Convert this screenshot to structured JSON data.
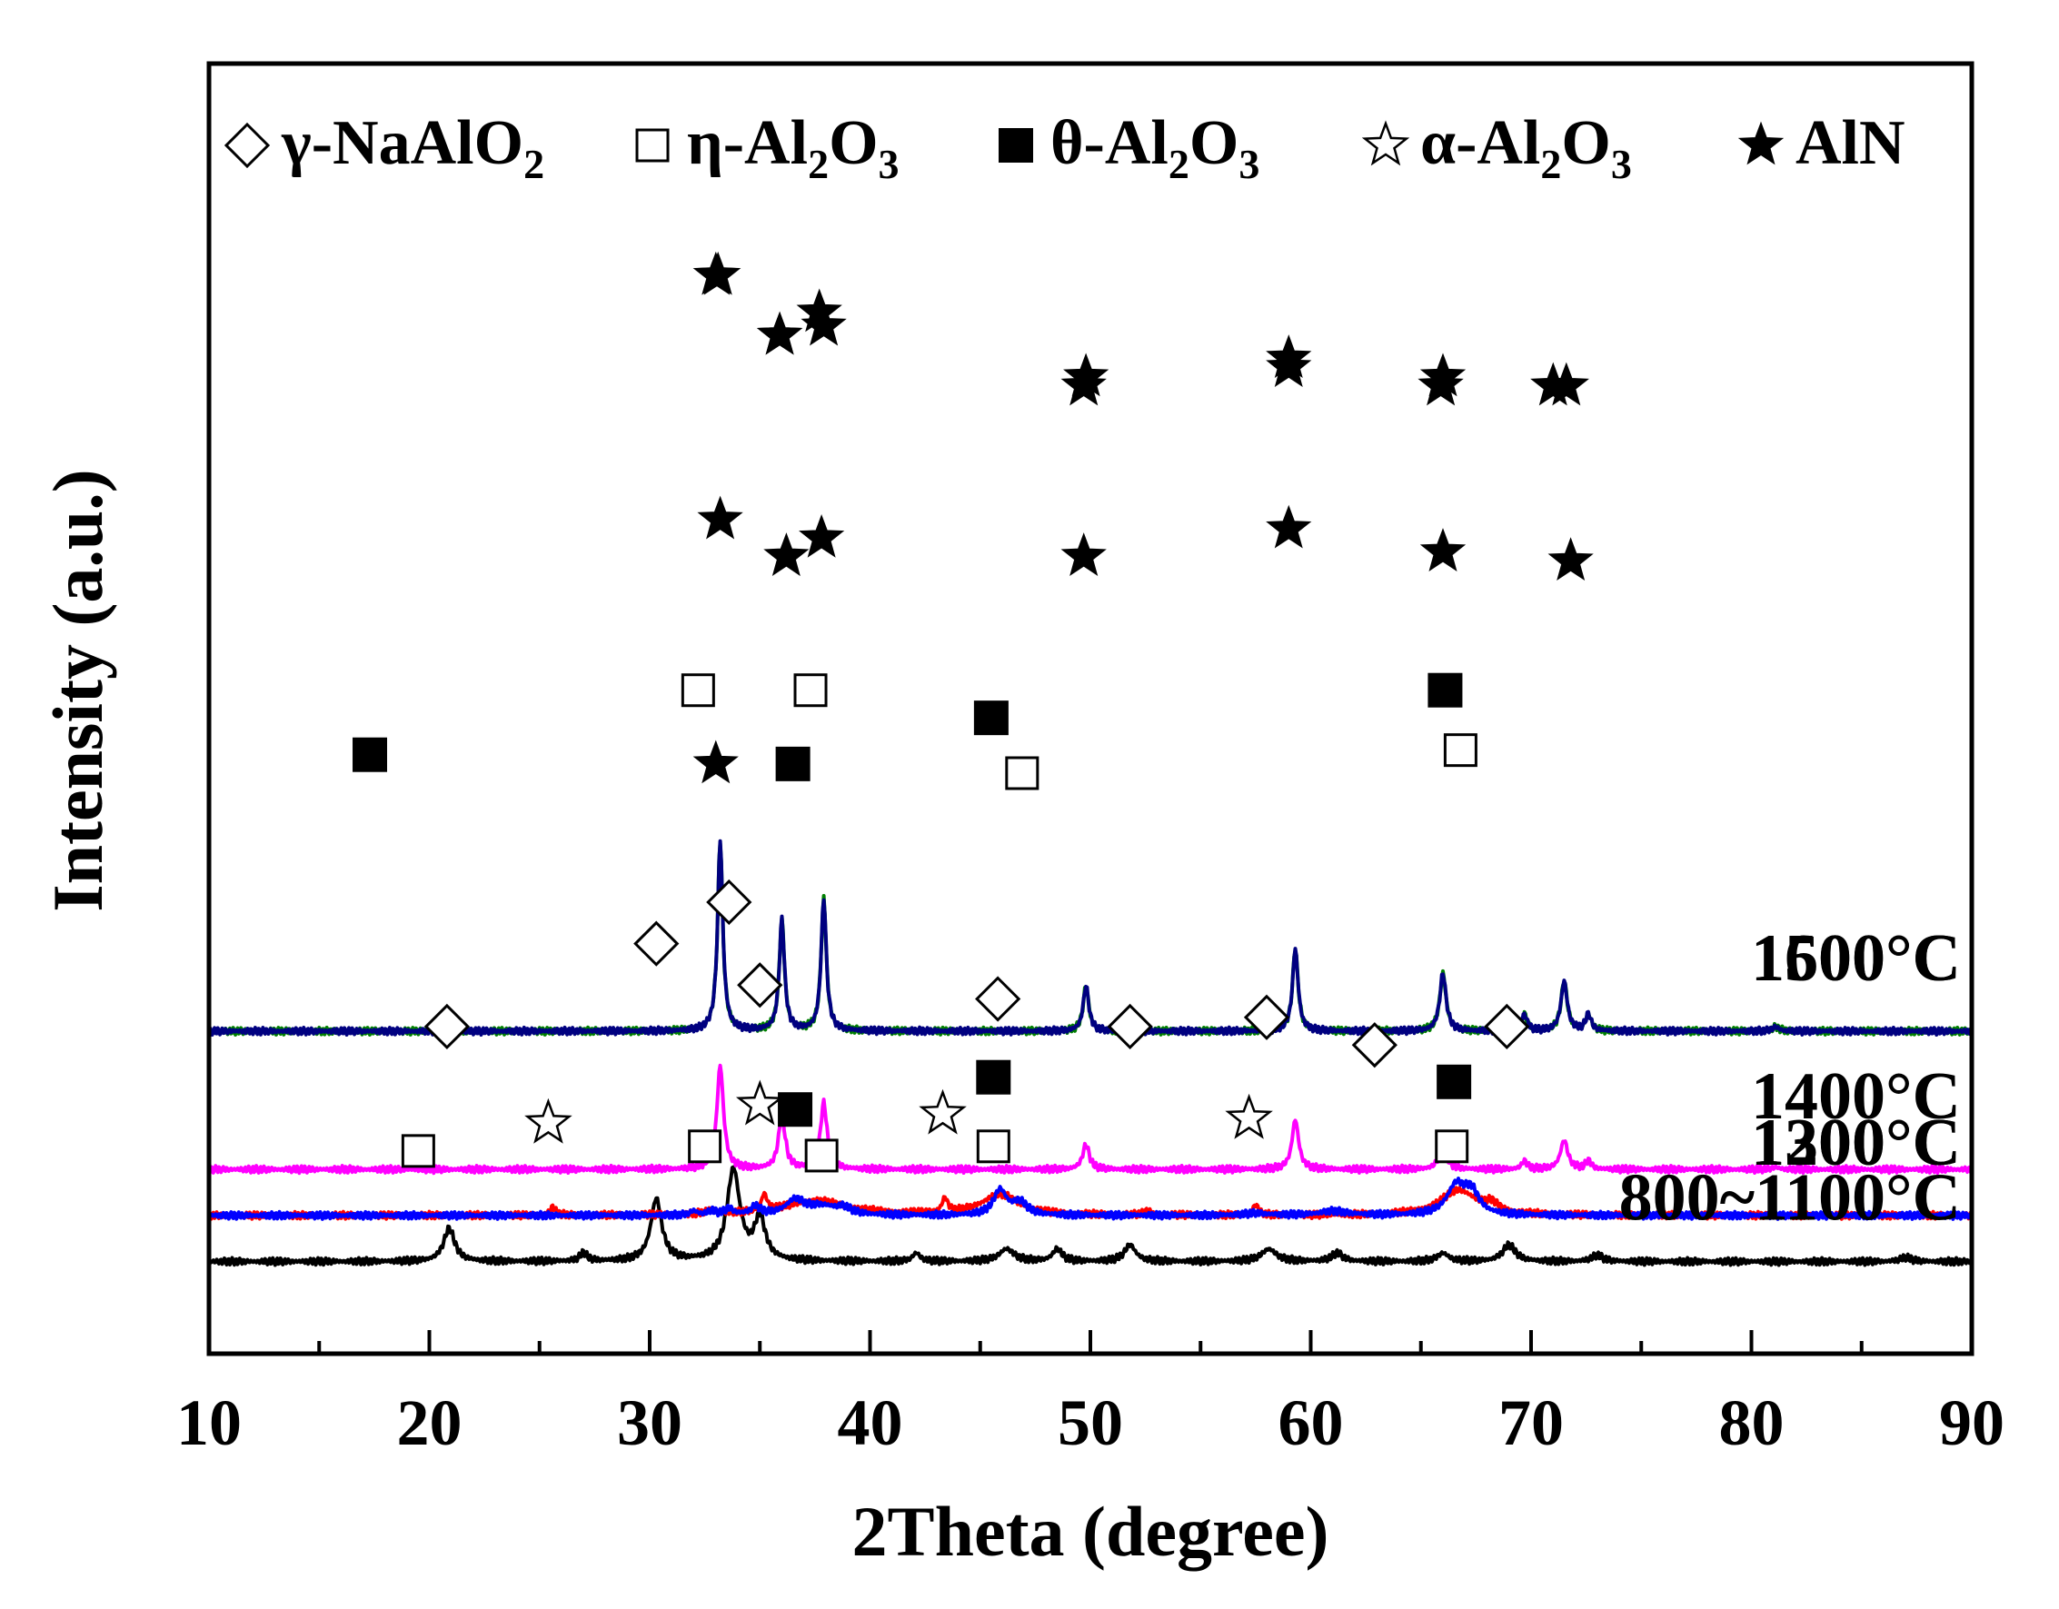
{
  "chart_data": {
    "type": "line",
    "title": "",
    "xlabel": "2Theta (degree)",
    "ylabel": "Intensity (a.u.)",
    "xlim": [
      10,
      90
    ],
    "xticks": [
      10,
      20,
      30,
      40,
      50,
      60,
      70,
      80,
      90
    ],
    "xtick_labels": [
      "10",
      "20",
      "30",
      "40",
      "50",
      "60",
      "70",
      "80",
      "90"
    ],
    "y_ticks_shown": false,
    "legend_position": "top",
    "legend": [
      {
        "symbol": "diamond-open",
        "prefix": "γ-NaAlO",
        "sub1": "2",
        "mid": "",
        "sub2": ""
      },
      {
        "symbol": "square-open",
        "prefix": "η-Al",
        "sub1": "2",
        "mid": "O",
        "sub2": "3"
      },
      {
        "symbol": "square-filled",
        "prefix": "θ-Al",
        "sub1": "2",
        "mid": "O",
        "sub2": "3"
      },
      {
        "symbol": "star-open",
        "prefix": "α-Al",
        "sub1": "2",
        "mid": "O",
        "sub2": "3"
      },
      {
        "symbol": "star-filled",
        "prefix": "AlN",
        "sub1": "",
        "mid": "",
        "sub2": ""
      }
    ],
    "series": [
      {
        "name": "800~1100°C",
        "color": "#000000",
        "baseline": 0.1,
        "scale": 0.45,
        "peaks": [
          [
            20.9,
            0.08,
            0.3
          ],
          [
            27.0,
            0.02,
            0.2
          ],
          [
            30.3,
            0.15,
            0.3
          ],
          [
            33.8,
            0.22,
            0.35
          ],
          [
            35.0,
            0.1,
            0.3
          ],
          [
            42.1,
            0.02,
            0.2
          ],
          [
            46.2,
            0.03,
            0.4
          ],
          [
            48.5,
            0.03,
            0.25
          ],
          [
            51.8,
            0.04,
            0.3
          ],
          [
            58.1,
            0.03,
            0.4
          ],
          [
            61.2,
            0.02,
            0.3
          ],
          [
            66.0,
            0.02,
            0.3
          ],
          [
            69.0,
            0.04,
            0.35
          ],
          [
            73.0,
            0.015,
            0.3
          ],
          [
            87.0,
            0.01,
            0.3
          ]
        ],
        "markers": [
          [
            20.8,
            "diamond-open",
            0.355
          ],
          [
            30.3,
            "diamond-open",
            0.445
          ],
          [
            33.6,
            "diamond-open",
            0.49
          ],
          [
            35.0,
            "diamond-open",
            0.4
          ],
          [
            45.8,
            "diamond-open",
            0.385
          ],
          [
            51.8,
            "diamond-open",
            0.355
          ],
          [
            58.0,
            "diamond-open",
            0.365
          ],
          [
            62.9,
            "diamond-open",
            0.335
          ],
          [
            68.9,
            "diamond-open",
            0.355
          ]
        ]
      },
      {
        "name": "1200°C",
        "color": "#ff0000",
        "baseline": 0.15,
        "scale": 0.45,
        "peaks": [
          [
            25.6,
            0.02,
            0.15
          ],
          [
            32.8,
            0.01,
            0.3
          ],
          [
            35.2,
            0.04,
            0.15
          ],
          [
            37.5,
            0.035,
            1.8
          ],
          [
            43.4,
            0.035,
            0.15
          ],
          [
            45.9,
            0.05,
            1.0
          ],
          [
            52.6,
            0.01,
            0.2
          ],
          [
            57.5,
            0.025,
            0.15
          ],
          [
            66.7,
            0.06,
            1.0
          ],
          [
            68.2,
            0.02,
            0.4
          ]
        ],
        "markers": [
          [
            19.5,
            "square-open",
            0.22
          ],
          [
            25.4,
            "star-open",
            0.25
          ],
          [
            32.5,
            "square-open",
            0.225
          ],
          [
            35.0,
            "star-open",
            0.27
          ],
          [
            36.6,
            "square-filled",
            0.265
          ],
          [
            37.8,
            "square-open",
            0.215
          ],
          [
            43.3,
            "star-open",
            0.26
          ],
          [
            45.6,
            "square-filled",
            0.3
          ],
          [
            45.6,
            "square-open",
            0.225
          ],
          [
            57.2,
            "star-open",
            0.255
          ],
          [
            66.5,
            "square-filled",
            0.295
          ],
          [
            66.4,
            "square-open",
            0.225
          ]
        ]
      },
      {
        "name": "1300°C",
        "color": "#0000ff",
        "baseline": 0.15,
        "scale": 0.45,
        "peaks": [
          [
            32.0,
            0.01,
            0.2
          ],
          [
            32.8,
            0.01,
            0.2
          ],
          [
            33.6,
            0.015,
            0.25
          ],
          [
            34.8,
            0.02,
            0.25
          ],
          [
            36.6,
            0.035,
            0.5
          ],
          [
            37.8,
            0.02,
            0.8
          ],
          [
            38.8,
            0.015,
            0.4
          ],
          [
            45.9,
            0.06,
            0.35
          ],
          [
            46.8,
            0.03,
            0.4
          ],
          [
            57.5,
            0.005,
            0.6
          ],
          [
            61.0,
            0.01,
            0.8
          ],
          [
            66.6,
            0.07,
            0.5
          ],
          [
            67.3,
            0.05,
            0.4
          ]
        ],
        "markers": [
          [
            17.3,
            "square-filled",
            0.65
          ],
          [
            32.2,
            "square-open",
            0.72
          ],
          [
            33.0,
            "star-filled",
            0.64
          ],
          [
            36.5,
            "square-filled",
            0.64
          ],
          [
            37.3,
            "square-open",
            0.72
          ],
          [
            45.5,
            "square-filled",
            0.69
          ],
          [
            46.9,
            "square-open",
            0.63
          ],
          [
            66.1,
            "square-filled",
            0.72
          ],
          [
            66.8,
            "square-open",
            0.655
          ]
        ]
      },
      {
        "name": "1400°C",
        "color": "#ff00ff",
        "baseline": 0.2,
        "scale": 0.45,
        "peaks": [
          [
            33.2,
            0.25,
            0.18
          ],
          [
            36.0,
            0.13,
            0.18
          ],
          [
            37.9,
            0.16,
            0.18
          ],
          [
            49.8,
            0.06,
            0.18
          ],
          [
            59.3,
            0.12,
            0.18
          ],
          [
            66.0,
            0.06,
            0.2
          ],
          [
            69.7,
            0.02,
            0.15
          ],
          [
            71.5,
            0.07,
            0.2
          ],
          [
            72.6,
            0.02,
            0.15
          ],
          [
            81.1,
            0.005,
            0.2
          ]
        ],
        "markers": [
          [
            33.2,
            "star-filled",
            0.905
          ],
          [
            36.2,
            "star-filled",
            0.865
          ],
          [
            37.8,
            "star-filled",
            0.885
          ],
          [
            49.7,
            "star-filled",
            0.865
          ],
          [
            59.0,
            "star-filled",
            0.895
          ],
          [
            66.0,
            "star-filled",
            0.87
          ],
          [
            71.8,
            "star-filled",
            0.86
          ]
        ]
      },
      {
        "name": "1500°C",
        "color": "#008000",
        "baseline": 0.35,
        "scale": 0.45,
        "peaks": [
          [
            33.2,
            0.46,
            0.14
          ],
          [
            36.0,
            0.27,
            0.14
          ],
          [
            37.9,
            0.32,
            0.14
          ],
          [
            49.8,
            0.11,
            0.15
          ],
          [
            59.3,
            0.2,
            0.15
          ],
          [
            66.0,
            0.14,
            0.17
          ],
          [
            69.7,
            0.04,
            0.15
          ],
          [
            71.5,
            0.12,
            0.17
          ],
          [
            72.6,
            0.04,
            0.15
          ],
          [
            76.4,
            0.005,
            0.2
          ],
          [
            81.1,
            0.01,
            0.2
          ]
        ],
        "markers": [
          [
            33.1,
            "star-filled",
            1.17
          ],
          [
            35.9,
            "star-filled",
            1.105
          ],
          [
            37.9,
            "star-filled",
            1.115
          ],
          [
            49.8,
            "star-filled",
            1.06
          ],
          [
            59.0,
            "star-filled",
            1.08
          ],
          [
            66.0,
            "star-filled",
            1.06
          ],
          [
            71.6,
            "star-filled",
            1.05
          ]
        ]
      },
      {
        "name": "1600°C",
        "color": "#000080",
        "baseline": 0.35,
        "scale": 0.45,
        "peaks": [
          [
            33.2,
            0.46,
            0.14
          ],
          [
            36.0,
            0.27,
            0.14
          ],
          [
            37.9,
            0.32,
            0.14
          ],
          [
            49.8,
            0.11,
            0.15
          ],
          [
            59.3,
            0.2,
            0.15
          ],
          [
            66.0,
            0.14,
            0.17
          ],
          [
            69.7,
            0.04,
            0.15
          ],
          [
            71.5,
            0.12,
            0.17
          ],
          [
            72.6,
            0.04,
            0.15
          ],
          [
            81.1,
            0.01,
            0.2
          ]
        ],
        "markers": [
          [
            33.0,
            "star-filled",
            1.17
          ],
          [
            35.9,
            "star-filled",
            1.105
          ],
          [
            37.7,
            "star-filled",
            1.13
          ],
          [
            49.7,
            "star-filled",
            1.05
          ],
          [
            59.0,
            "star-filled",
            1.07
          ],
          [
            65.9,
            "star-filled",
            1.05
          ],
          [
            71.0,
            "star-filled",
            1.05
          ]
        ]
      }
    ]
  }
}
